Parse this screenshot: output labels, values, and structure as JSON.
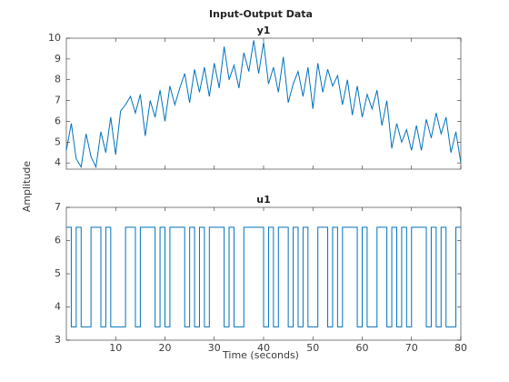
{
  "title": "Input-Output Data",
  "xlabel": "Time (seconds)",
  "ylabel": "Amplitude",
  "chart_data": [
    {
      "type": "line",
      "title": "y1",
      "color": "#0072bd",
      "xlim": [
        0,
        80
      ],
      "xticks": [
        10,
        20,
        30,
        40,
        50,
        60,
        70,
        80
      ],
      "ylim": [
        3.7,
        10
      ],
      "yticks": [
        4,
        5,
        6,
        7,
        8,
        9,
        10
      ],
      "x": [
        0,
        1,
        2,
        3,
        4,
        5,
        6,
        7,
        8,
        9,
        10,
        11,
        12,
        13,
        14,
        15,
        16,
        17,
        18,
        19,
        20,
        21,
        22,
        23,
        24,
        25,
        26,
        27,
        28,
        29,
        30,
        31,
        32,
        33,
        34,
        35,
        36,
        37,
        38,
        39,
        40,
        41,
        42,
        43,
        44,
        45,
        46,
        47,
        48,
        49,
        50,
        51,
        52,
        53,
        54,
        55,
        56,
        57,
        58,
        59,
        60,
        61,
        62,
        63,
        64,
        65,
        66,
        67,
        68,
        69,
        70,
        71,
        72,
        73,
        74,
        75,
        76,
        77,
        78,
        79,
        80
      ],
      "values": [
        4.6,
        5.9,
        4.2,
        3.8,
        5.4,
        4.3,
        3.8,
        5.5,
        4.5,
        6.2,
        4.4,
        6.5,
        6.8,
        7.2,
        6.4,
        7.3,
        5.3,
        7.0,
        6.2,
        7.5,
        6.0,
        7.7,
        6.8,
        7.6,
        8.3,
        6.9,
        8.5,
        7.4,
        8.6,
        7.2,
        8.8,
        7.6,
        9.6,
        8.0,
        8.7,
        7.6,
        9.3,
        8.4,
        9.9,
        8.3,
        9.8,
        7.8,
        8.6,
        7.4,
        9.1,
        6.9,
        7.8,
        8.4,
        7.2,
        8.6,
        6.6,
        8.8,
        7.4,
        8.5,
        7.7,
        8.2,
        6.8,
        8.0,
        6.3,
        7.7,
        6.2,
        7.3,
        6.6,
        7.5,
        5.8,
        7.0,
        4.7,
        5.9,
        5.0,
        5.6,
        4.6,
        5.8,
        4.6,
        6.1,
        5.2,
        6.4,
        5.4,
        6.2,
        4.5,
        5.5,
        4.0
      ]
    },
    {
      "type": "stairs",
      "title": "u1",
      "color": "#0072bd",
      "xlim": [
        0,
        80
      ],
      "xticks": [
        10,
        20,
        30,
        40,
        50,
        60,
        70,
        80
      ],
      "ylim": [
        3,
        7
      ],
      "yticks": [
        3,
        4,
        5,
        6,
        7
      ],
      "x": [
        0,
        1,
        2,
        3,
        4,
        5,
        6,
        7,
        8,
        9,
        10,
        11,
        12,
        13,
        14,
        15,
        16,
        17,
        18,
        19,
        20,
        21,
        22,
        23,
        24,
        25,
        26,
        27,
        28,
        29,
        30,
        31,
        32,
        33,
        34,
        35,
        36,
        37,
        38,
        39,
        40,
        41,
        42,
        43,
        44,
        45,
        46,
        47,
        48,
        49,
        50,
        51,
        52,
        53,
        54,
        55,
        56,
        57,
        58,
        59,
        60,
        61,
        62,
        63,
        64,
        65,
        66,
        67,
        68,
        69,
        70,
        71,
        72,
        73,
        74,
        75,
        76,
        77,
        78,
        79,
        80
      ],
      "values": [
        6.4,
        3.4,
        6.4,
        3.4,
        3.4,
        6.4,
        6.4,
        3.4,
        6.4,
        3.4,
        3.4,
        3.4,
        6.4,
        6.4,
        3.4,
        6.4,
        6.4,
        6.4,
        3.4,
        6.4,
        3.4,
        6.4,
        6.4,
        6.4,
        3.4,
        6.4,
        3.4,
        6.4,
        3.4,
        6.4,
        6.4,
        6.4,
        3.4,
        6.4,
        3.4,
        3.4,
        6.4,
        6.4,
        6.4,
        6.4,
        3.4,
        6.4,
        3.4,
        6.4,
        6.4,
        3.4,
        6.4,
        3.4,
        6.4,
        3.4,
        3.4,
        6.4,
        6.4,
        3.4,
        6.4,
        3.4,
        6.4,
        6.4,
        6.4,
        3.4,
        6.4,
        3.4,
        3.4,
        6.4,
        6.4,
        3.4,
        6.4,
        3.4,
        6.4,
        3.4,
        6.4,
        6.4,
        6.4,
        3.4,
        6.4,
        3.4,
        6.4,
        3.4,
        3.4,
        6.4,
        6.4
      ]
    }
  ]
}
